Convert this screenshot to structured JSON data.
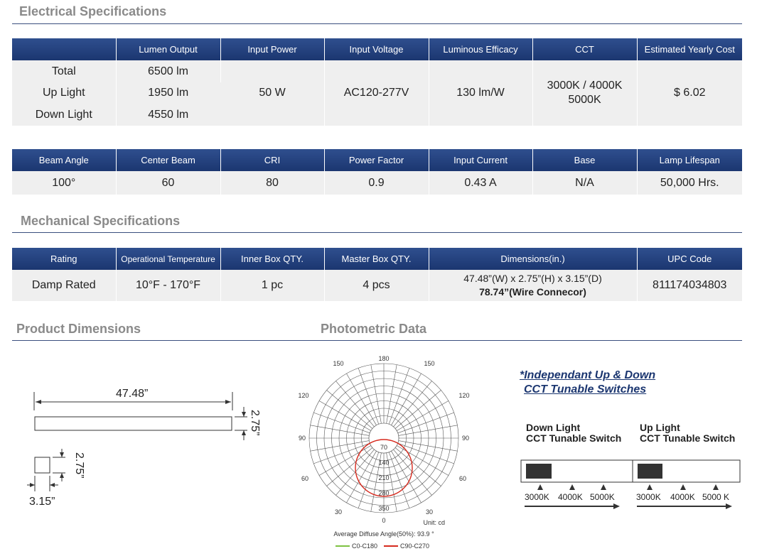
{
  "electrical": {
    "title": "Electrical Specifications",
    "headers": [
      "",
      "Lumen Output",
      "Input Power",
      "Input Voltage",
      "Luminous Efficacy",
      "CCT",
      "Estimated Yearly Cost"
    ],
    "rows": [
      {
        "label": "Total",
        "lumen": "6500 lm"
      },
      {
        "label": "Up Light",
        "lumen": "1950 lm"
      },
      {
        "label": "Down Light",
        "lumen": "4550 lm"
      }
    ],
    "input_power": "50 W",
    "input_voltage": "AC120-277V",
    "efficacy": "130 lm/W",
    "cct_line1": "3000K / 4000K",
    "cct_line2": "5000K",
    "yearly_cost": "$ 6.02",
    "headers2": [
      "Beam Angle",
      "Center Beam",
      "CRI",
      "Power Factor",
      "Input Current",
      "Base",
      "Lamp Lifespan"
    ],
    "values2": [
      "100°",
      "60",
      "80",
      "0.9",
      "0.43 A",
      "N/A",
      "50,000 Hrs."
    ]
  },
  "mechanical": {
    "title": "Mechanical Specifications",
    "headers": [
      "Rating",
      "Operational Temperature",
      "Inner Box QTY.",
      "Master Box QTY.",
      "Dimensions(in.)",
      "UPC Code"
    ],
    "rating": "Damp Rated",
    "temperature": "10°F - 170°F",
    "inner_box": "1 pc",
    "master_box": "4 pcs",
    "dimensions_line1": "47.48”(W) x 2.75”(H) x 3.15”(D)",
    "dimensions_line2": "78.74”(Wire Connecor)",
    "upc": "811174034803"
  },
  "product_dimensions": {
    "title": "Product Dimensions",
    "length": "47.48”",
    "height": "2.75”",
    "height2": "2.75”",
    "depth": "3.15”"
  },
  "photometric": {
    "title": "Photometric Data",
    "angles": {
      "top": "180",
      "tl": "150",
      "tr": "150",
      "ul": "120",
      "ur": "120",
      "l": "90",
      "r": "90",
      "ll": "60",
      "lr": "60",
      "bl": "30",
      "br": "30",
      "bottom": "0"
    },
    "radial_labels": [
      "70",
      "140",
      "210",
      "280",
      "350"
    ],
    "unit": "Unit: cd",
    "diffuse_angle": "Average Diffuse Angle(50%):  93.9 °",
    "legend": [
      {
        "name": "C0-C180",
        "color": "#7dc242"
      },
      {
        "name": "C90-C270",
        "color": "#d62a1e"
      }
    ]
  },
  "switches": {
    "note_line1": "*Independant Up & Down",
    "note_line2": "CCT Tunable Switches",
    "down_label1": "Down Light",
    "down_label2": "CCT Tunable Switch",
    "up_label1": "Up Light",
    "up_label2": "CCT Tunable Switch",
    "down_ccts": [
      "3000K",
      "4000K",
      "5000K"
    ],
    "up_ccts": [
      "3000K",
      "4000K",
      "5000 K"
    ]
  },
  "colors": {
    "header_blue": "#1b3670",
    "cell_gray": "#efefef",
    "title_gray": "#8a8a8a"
  }
}
